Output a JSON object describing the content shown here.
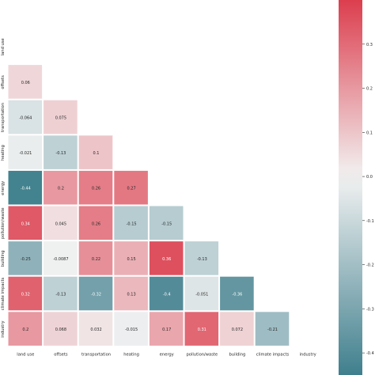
{
  "chart_data": {
    "type": "heatmap",
    "variables": [
      "land use",
      "offsets",
      "transportation",
      "heating",
      "energy",
      "pollution/waste",
      "building",
      "climate impacts",
      "industry"
    ],
    "mask": "lower-triangle",
    "cells": [
      {
        "row": "offsets",
        "col": "land use",
        "value": 0.06,
        "label": "0.06"
      },
      {
        "row": "transportation",
        "col": "land use",
        "value": -0.064,
        "label": "-0.064"
      },
      {
        "row": "transportation",
        "col": "offsets",
        "value": 0.075,
        "label": "0.075"
      },
      {
        "row": "heating",
        "col": "land use",
        "value": -0.021,
        "label": "-0.021"
      },
      {
        "row": "heating",
        "col": "offsets",
        "value": -0.13,
        "label": "-0.13"
      },
      {
        "row": "heating",
        "col": "transportation",
        "value": 0.1,
        "label": "0.1"
      },
      {
        "row": "energy",
        "col": "land use",
        "value": -0.44,
        "label": "-0.44"
      },
      {
        "row": "energy",
        "col": "offsets",
        "value": 0.2,
        "label": "0.2"
      },
      {
        "row": "energy",
        "col": "transportation",
        "value": 0.26,
        "label": "0.26"
      },
      {
        "row": "energy",
        "col": "heating",
        "value": 0.27,
        "label": "0.27"
      },
      {
        "row": "pollution/waste",
        "col": "land use",
        "value": 0.34,
        "label": "0.34"
      },
      {
        "row": "pollution/waste",
        "col": "offsets",
        "value": 0.045,
        "label": "0.045"
      },
      {
        "row": "pollution/waste",
        "col": "transportation",
        "value": 0.26,
        "label": "0.26"
      },
      {
        "row": "pollution/waste",
        "col": "heating",
        "value": -0.15,
        "label": "-0.15"
      },
      {
        "row": "pollution/waste",
        "col": "energy",
        "value": -0.15,
        "label": "-0.15"
      },
      {
        "row": "building",
        "col": "land use",
        "value": -0.25,
        "label": "-0.25"
      },
      {
        "row": "building",
        "col": "offsets",
        "value": -0.0087,
        "label": "-0.0087"
      },
      {
        "row": "building",
        "col": "transportation",
        "value": 0.22,
        "label": "0.22"
      },
      {
        "row": "building",
        "col": "heating",
        "value": 0.15,
        "label": "0.15"
      },
      {
        "row": "building",
        "col": "energy",
        "value": 0.36,
        "label": "0.36"
      },
      {
        "row": "building",
        "col": "pollution/waste",
        "value": -0.13,
        "label": "-0.13"
      },
      {
        "row": "climate impacts",
        "col": "land use",
        "value": 0.32,
        "label": "0.32"
      },
      {
        "row": "climate impacts",
        "col": "offsets",
        "value": -0.13,
        "label": "-0.13"
      },
      {
        "row": "climate impacts",
        "col": "transportation",
        "value": -0.32,
        "label": "-0.32"
      },
      {
        "row": "climate impacts",
        "col": "heating",
        "value": 0.13,
        "label": "0.13"
      },
      {
        "row": "climate impacts",
        "col": "energy",
        "value": -0.4,
        "label": "-0.4"
      },
      {
        "row": "climate impacts",
        "col": "pollution/waste",
        "value": -0.051,
        "label": "-0.051"
      },
      {
        "row": "climate impacts",
        "col": "building",
        "value": -0.36,
        "label": "-0.36"
      },
      {
        "row": "industry",
        "col": "land use",
        "value": 0.2,
        "label": "0.2"
      },
      {
        "row": "industry",
        "col": "offsets",
        "value": 0.068,
        "label": "0.068"
      },
      {
        "row": "industry",
        "col": "transportation",
        "value": 0.032,
        "label": "0.032"
      },
      {
        "row": "industry",
        "col": "heating",
        "value": -0.015,
        "label": "-0.015"
      },
      {
        "row": "industry",
        "col": "energy",
        "value": 0.17,
        "label": "0.17"
      },
      {
        "row": "industry",
        "col": "pollution/waste",
        "value": 0.31,
        "label": "0.31"
      },
      {
        "row": "industry",
        "col": "building",
        "value": 0.072,
        "label": "0.072"
      },
      {
        "row": "industry",
        "col": "climate impacts",
        "value": -0.21,
        "label": "-0.21"
      }
    ],
    "colorbar": {
      "ticks": [
        0.3,
        0.2,
        0.1,
        0.0,
        -0.1,
        -0.2,
        -0.3,
        -0.4
      ],
      "tick_labels": [
        "0.3",
        "0.2",
        "0.1",
        "0.0",
        "-0.1",
        "-0.2",
        "-0.3",
        "-0.4"
      ],
      "range": [
        -0.45,
        0.4
      ]
    },
    "colors": {
      "negative": "#3f7f8d",
      "neutral": "#f2f2f2",
      "positive": "#dc3e4e"
    },
    "title": "",
    "xlabel": "",
    "ylabel": ""
  }
}
